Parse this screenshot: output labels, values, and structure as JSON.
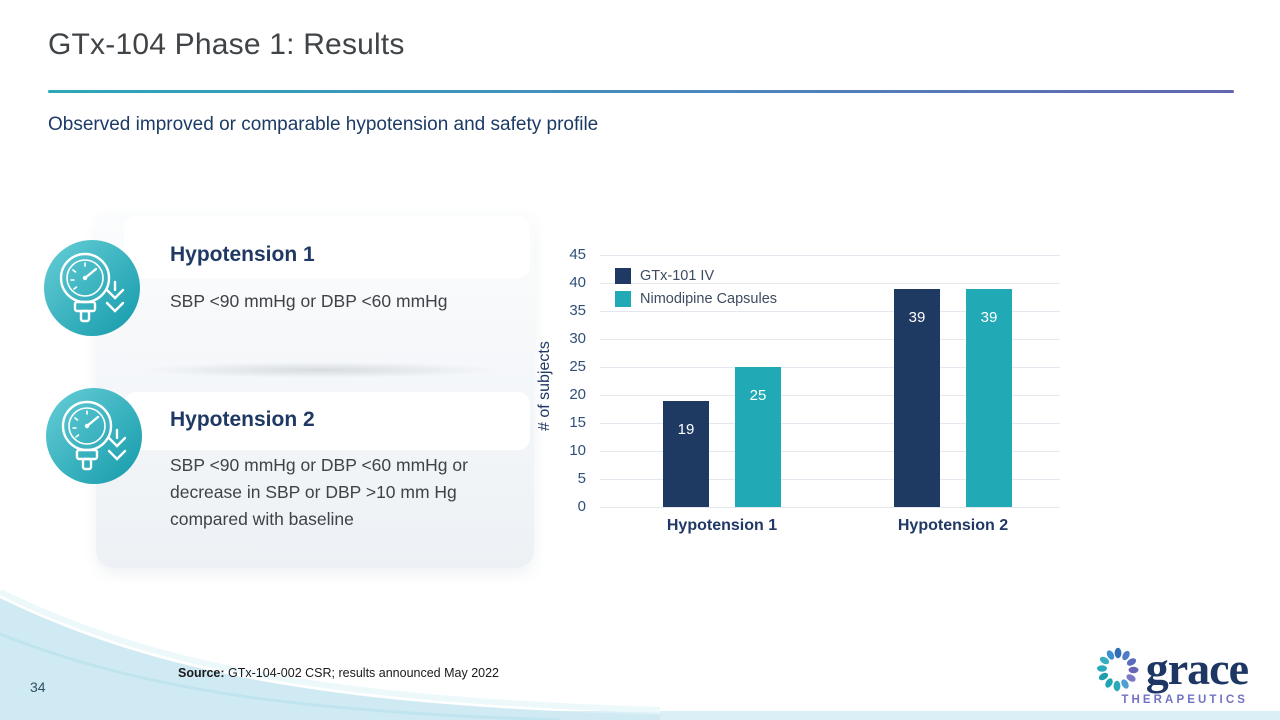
{
  "slide": {
    "title": "GTx-104 Phase 1: Results",
    "subtitle": "Observed improved or comparable hypotension and safety profile",
    "page_number": "34",
    "source_label": "Source:",
    "source_text": " GTx-104-002 CSR; results announced May 2022"
  },
  "definitions": [
    {
      "title": "Hypotension 1",
      "body": "SBP <90 mmHg or DBP <60 mmHg",
      "icon": "pressure-gauge-decrease-icon"
    },
    {
      "title": "Hypotension 2",
      "body": "SBP <90 mmHg or DBP <60 mmHg or decrease in SBP or DBP >10 mm Hg compared with baseline",
      "icon": "pressure-gauge-decrease-icon"
    }
  ],
  "chart_data": {
    "type": "bar",
    "title": "",
    "categories": [
      "Hypotension 1",
      "Hypotension 2"
    ],
    "series": [
      {
        "name": "GTx-101 IV",
        "color": "#1e3a63",
        "values": [
          19,
          39
        ]
      },
      {
        "name": "Nimodipine Capsules",
        "color": "#21aab6",
        "values": [
          25,
          39
        ]
      }
    ],
    "ylabel": "# of subjects",
    "xlabel": "",
    "ylim": [
      0,
      45
    ],
    "ytick_step": 5,
    "grid": true,
    "legend_position": "top-left",
    "value_labels": "inside top of bars, white"
  },
  "logo": {
    "word": "grace",
    "subtext": "THERAPEUTICS"
  },
  "colors": {
    "accent_teal": "#21aab6",
    "accent_navy": "#1f3864",
    "divider_gradient": [
      "#2ba8b5",
      "#6366ae"
    ],
    "wave_blue": "#cfeaf3",
    "icon_gradient": [
      "#60ccd5",
      "#149aaa"
    ]
  }
}
